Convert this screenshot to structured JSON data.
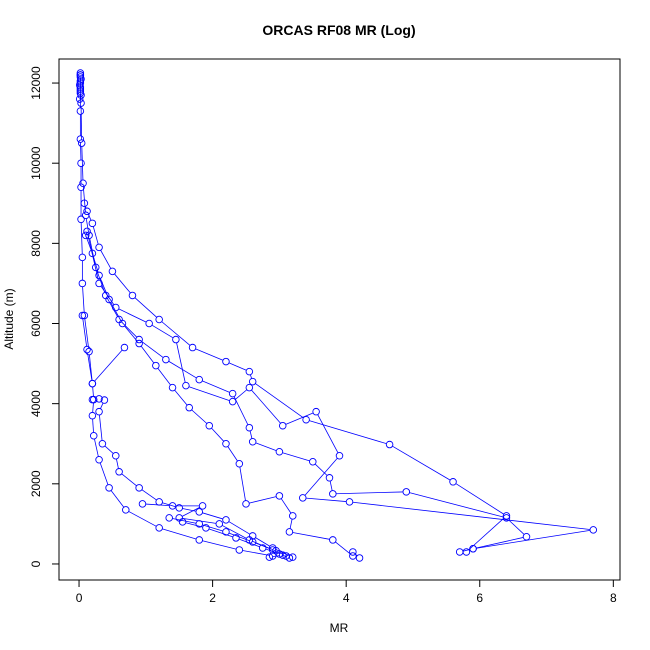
{
  "chart_data": {
    "type": "line",
    "title": "ORCAS RF08 MR (Log)",
    "xlabel": "MR",
    "ylabel": "Altitude (m)",
    "xlim": [
      -0.3,
      8.1
    ],
    "ylim": [
      -400,
      12600
    ],
    "xticks": [
      0,
      2,
      4,
      6,
      8
    ],
    "yticks": [
      0,
      2000,
      4000,
      6000,
      8000,
      10000,
      12000
    ],
    "grid": false,
    "legend": "none",
    "markers": "open-circle",
    "color": "#0000ff",
    "series": [
      {
        "points": [
          [
            2.9,
            200
          ],
          [
            2.4,
            350
          ],
          [
            1.8,
            600
          ],
          [
            1.2,
            900
          ],
          [
            0.7,
            1350
          ],
          [
            0.45,
            1900
          ],
          [
            0.3,
            2600
          ],
          [
            0.22,
            3200
          ],
          [
            0.2,
            3700
          ],
          [
            0.22,
            4100
          ],
          [
            0.2,
            4500
          ],
          [
            0.15,
            5300
          ],
          [
            0.08,
            6200
          ],
          [
            0.05,
            7000
          ],
          [
            0.05,
            7650
          ],
          [
            0.03,
            8600
          ],
          [
            0.03,
            9400
          ],
          [
            0.03,
            10000
          ],
          [
            0.02,
            10600
          ],
          [
            0.02,
            11300
          ],
          [
            0.02,
            11800
          ],
          [
            0.02,
            12000
          ],
          [
            0.02,
            12200
          ]
        ]
      },
      {
        "points": [
          [
            0.02,
            12200
          ],
          [
            0.02,
            11900
          ],
          [
            0.03,
            11500
          ],
          [
            0.04,
            10500
          ],
          [
            0.06,
            9500
          ],
          [
            0.1,
            8700
          ],
          [
            0.15,
            8200
          ],
          [
            0.25,
            7400
          ],
          [
            0.4,
            6700
          ],
          [
            0.6,
            6100
          ],
          [
            0.9,
            5600
          ],
          [
            1.3,
            5100
          ],
          [
            1.8,
            4600
          ],
          [
            2.3,
            4250
          ],
          [
            2.55,
            3400
          ],
          [
            2.6,
            3050
          ],
          [
            3.0,
            2800
          ],
          [
            3.5,
            2550
          ],
          [
            3.75,
            2150
          ],
          [
            3.8,
            1750
          ],
          [
            4.9,
            1800
          ],
          [
            6.4,
            1150
          ],
          [
            6.7,
            680
          ],
          [
            5.9,
            380
          ],
          [
            5.8,
            300
          ],
          [
            6.4,
            1200
          ],
          [
            5.6,
            2050
          ],
          [
            4.65,
            2980
          ],
          [
            3.4,
            3600
          ],
          [
            2.6,
            4550
          ],
          [
            2.55,
            4800
          ],
          [
            2.2,
            5050
          ],
          [
            1.7,
            5400
          ],
          [
            1.2,
            6100
          ],
          [
            0.8,
            6700
          ],
          [
            0.5,
            7300
          ],
          [
            0.3,
            7900
          ],
          [
            0.2,
            8500
          ],
          [
            0.12,
            8800
          ],
          [
            0.08,
            9000
          ]
        ]
      },
      {
        "points": [
          [
            0.1,
            8200
          ],
          [
            0.2,
            7750
          ],
          [
            0.3,
            7200
          ],
          [
            0.45,
            6600
          ],
          [
            0.65,
            6000
          ],
          [
            0.9,
            5500
          ],
          [
            1.15,
            4950
          ],
          [
            1.4,
            4400
          ],
          [
            1.65,
            3900
          ],
          [
            1.95,
            3450
          ],
          [
            2.2,
            3000
          ],
          [
            2.4,
            2500
          ],
          [
            2.5,
            1500
          ],
          [
            3.0,
            1700
          ],
          [
            3.2,
            1200
          ],
          [
            3.15,
            800
          ],
          [
            3.8,
            600
          ],
          [
            4.1,
            200
          ],
          [
            4.2,
            150
          ],
          [
            4.1,
            300
          ]
        ]
      },
      {
        "points": [
          [
            0.12,
            8300
          ],
          [
            0.3,
            7000
          ],
          [
            0.55,
            6400
          ],
          [
            1.05,
            6000
          ],
          [
            1.45,
            5600
          ],
          [
            1.6,
            4450
          ],
          [
            2.3,
            4050
          ],
          [
            2.55,
            4400
          ],
          [
            3.05,
            3450
          ],
          [
            3.55,
            3800
          ],
          [
            3.9,
            2700
          ],
          [
            3.35,
            1650
          ],
          [
            4.05,
            1550
          ],
          [
            7.7,
            850
          ],
          [
            5.9,
            380
          ],
          [
            5.7,
            300
          ]
        ]
      },
      {
        "points": [
          [
            0.2,
            4100
          ],
          [
            0.3,
            4120
          ],
          [
            0.38,
            4090
          ],
          [
            0.3,
            3800
          ],
          [
            0.35,
            3000
          ],
          [
            0.55,
            2700
          ],
          [
            0.6,
            2300
          ],
          [
            0.9,
            1900
          ],
          [
            1.2,
            1550
          ],
          [
            1.5,
            1400
          ],
          [
            1.8,
            1300
          ],
          [
            2.2,
            1100
          ],
          [
            2.6,
            700
          ],
          [
            2.9,
            400
          ],
          [
            3.2,
            170
          ]
        ]
      },
      {
        "points": [
          [
            0.95,
            1500
          ],
          [
            1.4,
            1450
          ],
          [
            1.85,
            1450
          ],
          [
            1.5,
            1150
          ],
          [
            2.1,
            1000
          ],
          [
            2.55,
            600
          ],
          [
            2.9,
            350
          ],
          [
            3.05,
            220
          ],
          [
            2.85,
            170
          ]
        ]
      },
      {
        "points": [
          [
            1.55,
            1050
          ],
          [
            1.9,
            900
          ],
          [
            2.35,
            650
          ],
          [
            2.75,
            400
          ],
          [
            3.0,
            250
          ],
          [
            3.15,
            150
          ]
        ]
      },
      {
        "points": [
          [
            1.35,
            1150
          ],
          [
            1.8,
            1000
          ],
          [
            2.2,
            800
          ],
          [
            2.6,
            550
          ],
          [
            2.95,
            330
          ],
          [
            3.1,
            200
          ]
        ]
      },
      {
        "points": [
          [
            0.05,
            6200
          ],
          [
            0.12,
            5350
          ],
          [
            0.2,
            4500
          ],
          [
            0.68,
            5400
          ]
        ]
      },
      {
        "points": [
          [
            0.02,
            12250
          ],
          [
            0.03,
            12100
          ],
          [
            0.01,
            11950
          ],
          [
            0.02,
            11850
          ],
          [
            0.03,
            11700
          ],
          [
            0.01,
            11600
          ],
          [
            0.02,
            11750
          ],
          [
            0.02,
            12050
          ],
          [
            0.02,
            12150
          ]
        ]
      }
    ]
  }
}
